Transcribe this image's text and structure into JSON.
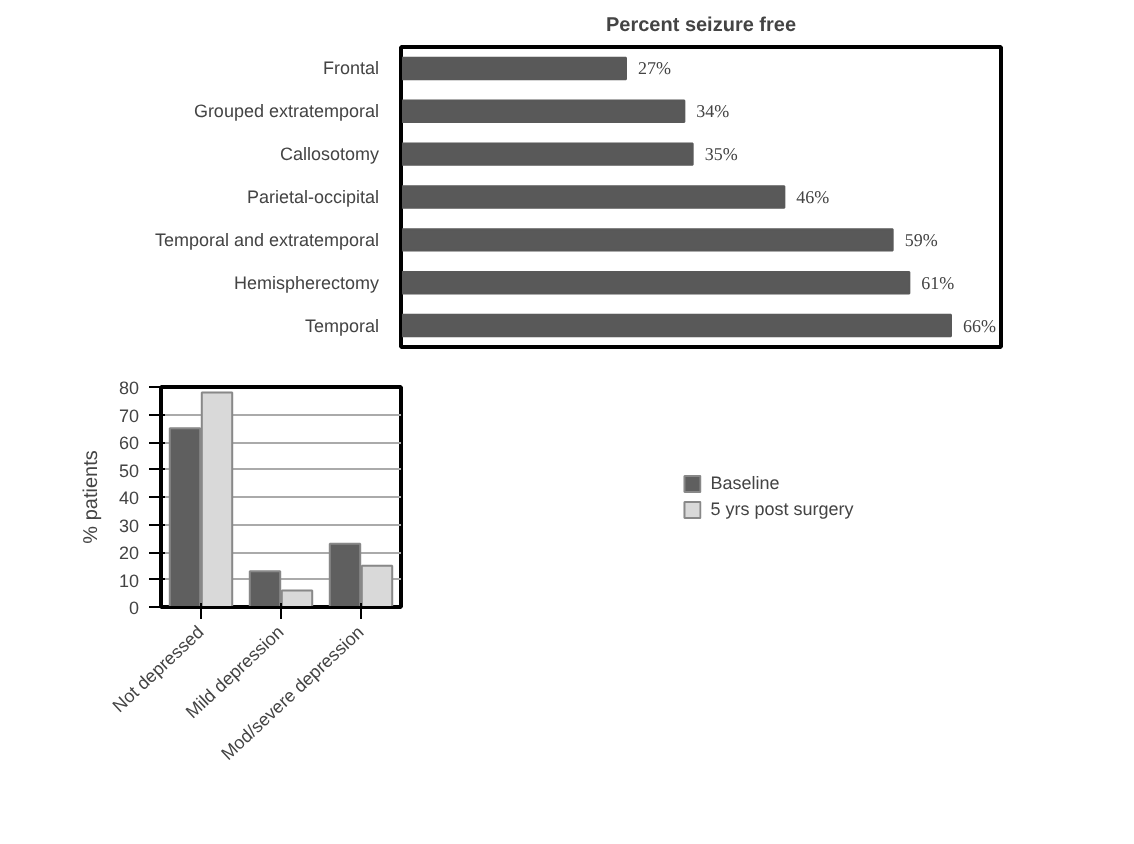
{
  "chart_data": [
    {
      "type": "bar",
      "orientation": "horizontal",
      "title": "Percent seizure free",
      "categories": [
        "Frontal",
        "Grouped extratemporal",
        "Callosotomy",
        "Parietal-occipital",
        "Temporal and extratemporal",
        "Hemispherectomy",
        "Temporal"
      ],
      "values": [
        27,
        34,
        35,
        46,
        59,
        61,
        66
      ],
      "color": "#595959",
      "value_labels": [
        "27%",
        "34%",
        "35%",
        "46%",
        "59%",
        "61%",
        "66%"
      ],
      "xlim": [
        0,
        72
      ],
      "tick_labels": "y"
    },
    {
      "type": "bar",
      "ylabel": "% patients",
      "categories": [
        "Not depressed",
        "Mild depression",
        "Mod/severe depression"
      ],
      "series": [
        {
          "name": "Baseline",
          "color": "#5f5f5f",
          "values": [
            65,
            13,
            23
          ]
        },
        {
          "name": "5 yrs post surgery",
          "color": "#d9d9d9",
          "values": [
            78,
            6,
            15
          ]
        }
      ],
      "ylim": [
        0,
        80
      ],
      "yticks": [
        0,
        10,
        20,
        30,
        40,
        50,
        60,
        70,
        80
      ],
      "grid": "y",
      "legend": "right"
    }
  ]
}
